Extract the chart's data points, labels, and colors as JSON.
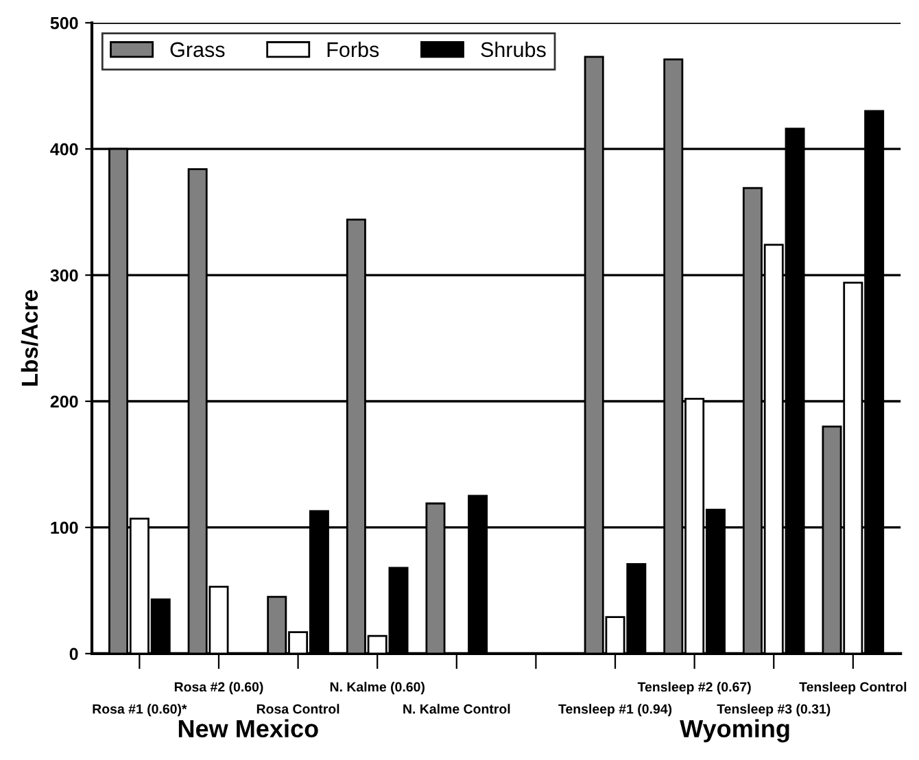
{
  "chart_data": {
    "type": "bar",
    "ylabel": "Lbs/Acre",
    "categories": [
      "Rosa #1 (0.60)*",
      "Rosa #2 (0.60)",
      "Rosa Control",
      "N. Kalme (0.60)",
      "N. Kalme Control",
      null,
      "Tensleep #1 (0.94)",
      "Tensleep #2 (0.67)",
      "Tensleep #3 (0.31)",
      "Tensleep Control"
    ],
    "series": [
      {
        "name": "Grass",
        "color": "#808080",
        "values": [
          400,
          384,
          45,
          344,
          119,
          null,
          473,
          471,
          369,
          180
        ]
      },
      {
        "name": "Forbs",
        "color": "#ffffff",
        "values": [
          107,
          53,
          17,
          14,
          null,
          null,
          29,
          202,
          324,
          294
        ]
      },
      {
        "name": "Shrubs",
        "color": "#000000",
        "values": [
          43,
          null,
          113,
          68,
          125,
          null,
          71,
          114,
          416,
          430
        ]
      }
    ],
    "ylim": [
      0,
      500
    ],
    "yticks": [
      0,
      100,
      200,
      300,
      400,
      500
    ],
    "grid": "y",
    "legend": "top left",
    "annotations": [
      "New Mexico",
      "Wyoming"
    ]
  }
}
